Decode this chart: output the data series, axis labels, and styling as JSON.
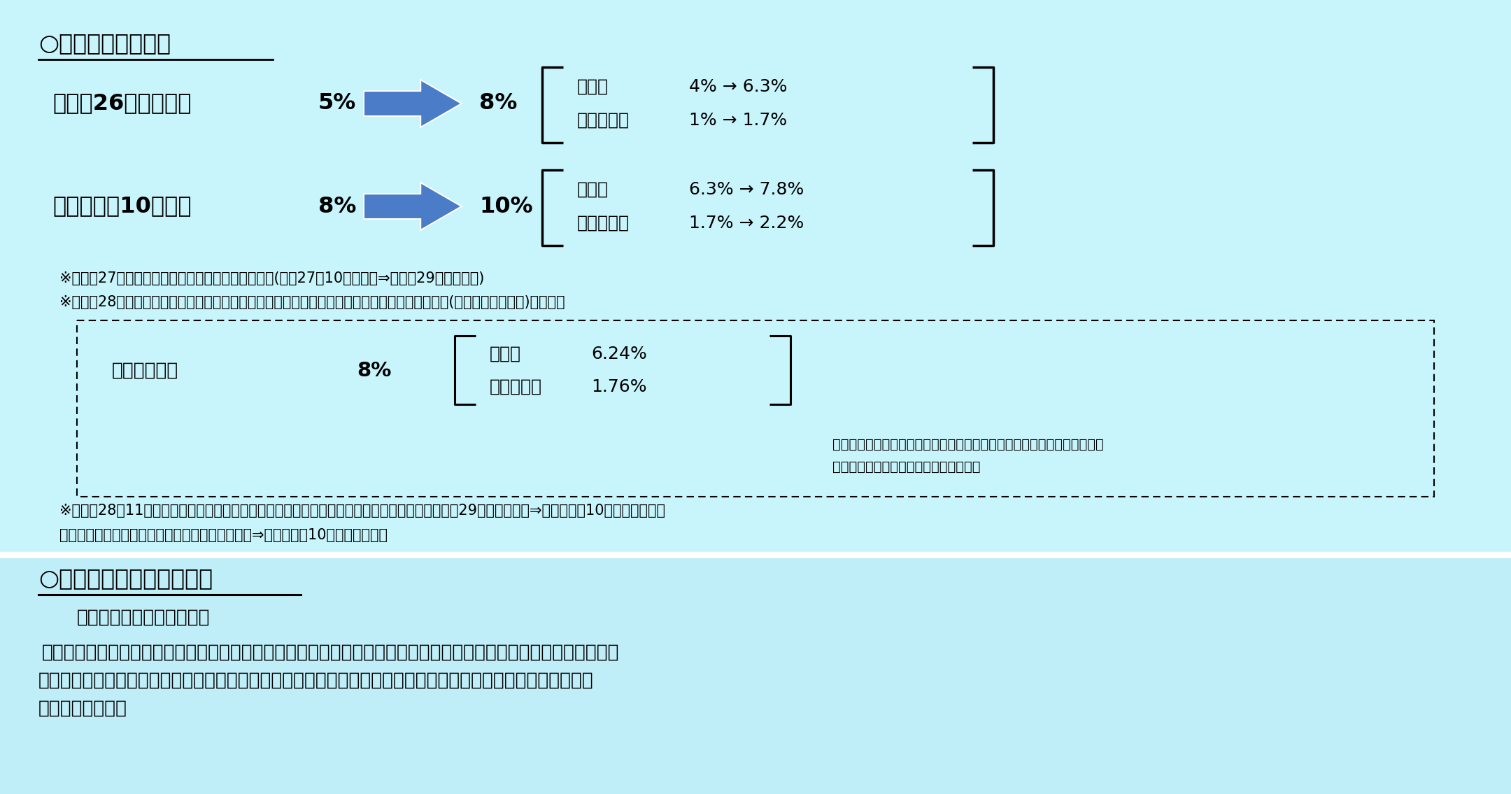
{
  "bg_top": "#c8f4fc",
  "bg_bottom": "#c0eef8",
  "sep_color": "#ffffff",
  "title1": "○消費税率の引上げ",
  "row1_date": "・平成26年４月１日",
  "row1_from": "5%",
  "row1_to": "8%",
  "row1_items": [
    [
      "消費税",
      "4% → 6.3%"
    ],
    [
      "地方消費税",
      "1% → 1.7%"
    ]
  ],
  "row2_date": "・令和元年10月１日",
  "row2_from": "8%",
  "row2_to": "10%",
  "row2_items": [
    [
      "消費税",
      "6.3% → 7.8%"
    ],
    [
      "地方消費税",
      "1.7% → 2.2%"
    ]
  ],
  "note1": "※　平成27年度税制改正法：税率引上げ時期を変更(平成27年10月１日　⇒　平成29年４月１日)",
  "note2": "※　平成28年度税制改正法：軽減税率制度の実施及びその実施から４年後のインボイス制度実施(令和３年４月１日)を決定。",
  "reduced_label": "［軽減税率］",
  "reduced_rate": "8%",
  "reduced_items": [
    [
      "消費税",
      "6.24%"
    ],
    [
      "地方消費税",
      "1.76%"
    ]
  ],
  "reduced_note_line1": "（注）軽減税率対象品目は、酒類・外食を除く飲食料品及び定期購読契約",
  "reduced_note_line2": "が締結された週２回以上発行される新聞",
  "note3_line1": "※　平成28年11月消費税率引上げ時期変更法：税率引上げ時期・軽減税率制度実施の時期（平成29年４月１日　⇒　令和元年10月１日）及びイ",
  "note3_line2": "　　ンボイス制度実施の時期（令和３年４月１日⇒　令和５年10月１日）を変更",
  "title2": "○消費税収の使途の明確化",
  "sub2": "（消費税法第１条第２項）",
  "body2_line1": "　消費税の収入については、地方交付税法（昭和二十五年法律第二百十一号）に定めるところによるほか、毎年度、",
  "body2_line2": "制度として確立された年金、医療及び介護の社会保障給付並びに少子化に対処するための施策に要する経費に充",
  "body2_line3": "てるものとする。",
  "arrow_color": "#4a7cc7",
  "text_color": "#000000",
  "bracket_color": "#000000",
  "underline_color": "#000000"
}
